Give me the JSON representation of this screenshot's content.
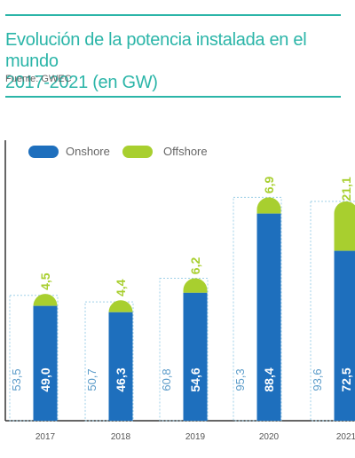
{
  "header": {
    "title_line1": "Evolución de la potencia instalada en el mundo",
    "title_line2": "2017-2021 (en GW)",
    "source": "Fuente: GWEC"
  },
  "colors": {
    "accent": "#2bb5a8",
    "onshore": "#1e6fbd",
    "offshore": "#a8cf2f",
    "outline": "#9fd0e8"
  },
  "chart_data": {
    "type": "bar",
    "stacked": true,
    "categories": [
      "2017",
      "2018",
      "2019",
      "2020",
      "2021"
    ],
    "series": [
      {
        "name": "Onshore",
        "values": [
          49.0,
          46.3,
          54.6,
          88.4,
          72.5
        ],
        "labels": [
          "49,0",
          "46,3",
          "54,6",
          "88,4",
          "72,5"
        ]
      },
      {
        "name": "Offshore",
        "values": [
          4.5,
          4.4,
          6.2,
          6.9,
          21.1
        ],
        "labels": [
          "4,5",
          "4,4",
          "6,2",
          "6,9",
          "21,1"
        ]
      }
    ],
    "totals": [
      53.5,
      50.7,
      60.8,
      95.3,
      93.6
    ],
    "total_labels": [
      "53,5",
      "50,7",
      "60,8",
      "95,3",
      "93,6"
    ],
    "legend": [
      "Onshore",
      "Offshore"
    ],
    "legend_position": "top-left",
    "ylim": [
      0,
      100
    ]
  }
}
